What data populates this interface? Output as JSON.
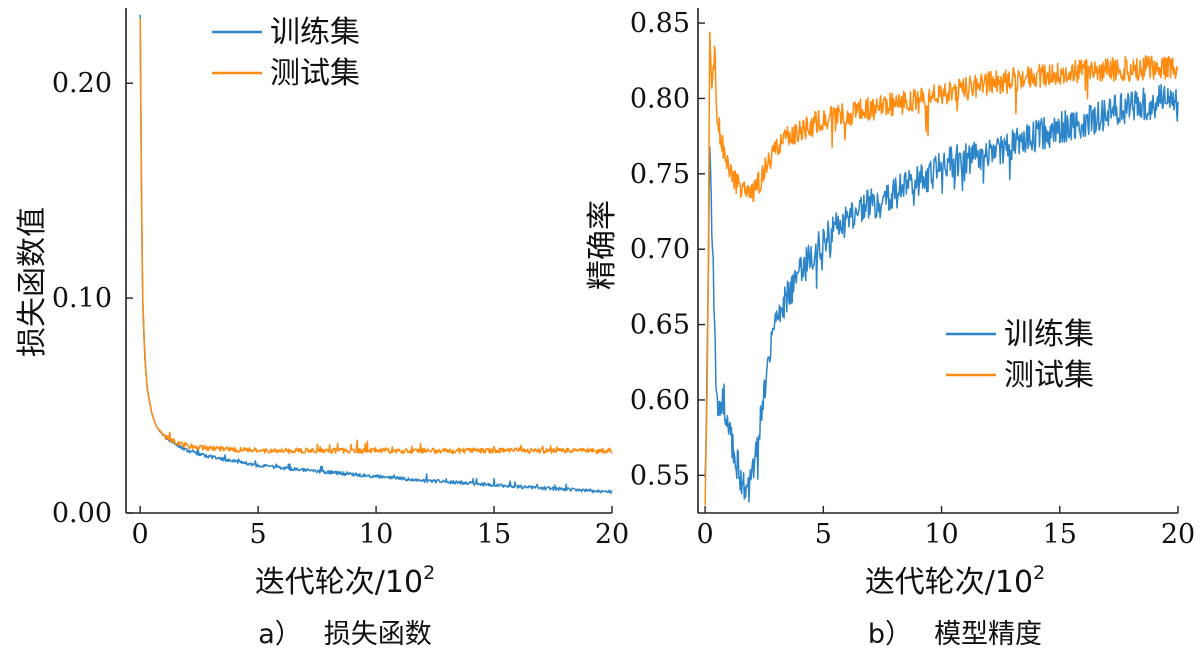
{
  "colors": {
    "train": "#2c85c8",
    "test": "#ff8c10"
  },
  "chart_data": [
    {
      "type": "line",
      "caption_prefix": "a）",
      "caption": "损失函数",
      "xlabel": "迭代轮次/10",
      "xlabel_exp": "2",
      "ylabel": "损失函数值",
      "xlim": [
        -0.6,
        20
      ],
      "ylim": [
        0.0,
        0.235
      ],
      "xticks": [
        0,
        5,
        10,
        15,
        20
      ],
      "xtick_labels": [
        "0",
        "5",
        "10",
        "15",
        "20"
      ],
      "yticks": [
        0.0,
        0.1,
        0.2
      ],
      "ytick_labels": [
        "0.00",
        "0.10",
        "0.20"
      ],
      "legend": {
        "position": "top-center",
        "entries": [
          "训练集",
          "测试集"
        ]
      },
      "series": [
        {
          "name": "训练集",
          "color_key": "train",
          "x": [
            0,
            0.05,
            0.1,
            0.2,
            0.3,
            0.5,
            0.7,
            1,
            1.5,
            2,
            3,
            4,
            5,
            6,
            7,
            8,
            9,
            10,
            11,
            12,
            13,
            14,
            15,
            16,
            17,
            18,
            19,
            20
          ],
          "values": [
            0.232,
            0.16,
            0.1,
            0.072,
            0.058,
            0.046,
            0.04,
            0.036,
            0.032,
            0.029,
            0.026,
            0.024,
            0.022,
            0.021,
            0.02,
            0.019,
            0.018,
            0.017,
            0.016,
            0.015,
            0.0145,
            0.0138,
            0.013,
            0.0123,
            0.0116,
            0.011,
            0.0104,
            0.0098
          ]
        },
        {
          "name": "测试集",
          "color_key": "test",
          "x": [
            0,
            0.05,
            0.1,
            0.2,
            0.3,
            0.5,
            0.7,
            1,
            1.5,
            2,
            3,
            4,
            5,
            6,
            7,
            8,
            9,
            10,
            11,
            12,
            13,
            14,
            15,
            16,
            17,
            18,
            19,
            20
          ],
          "values": [
            0.23,
            0.16,
            0.1,
            0.072,
            0.058,
            0.046,
            0.04,
            0.036,
            0.033,
            0.031,
            0.03,
            0.0295,
            0.029,
            0.029,
            0.029,
            0.029,
            0.029,
            0.029,
            0.029,
            0.029,
            0.029,
            0.029,
            0.029,
            0.029,
            0.029,
            0.029,
            0.029,
            0.029
          ]
        }
      ]
    },
    {
      "type": "line",
      "caption_prefix": "b）",
      "caption": "模型精度",
      "xlabel": "迭代轮次/10",
      "xlabel_exp": "2",
      "ylabel": "精确率",
      "xlim": [
        -0.3,
        20
      ],
      "ylim": [
        0.525,
        0.86
      ],
      "xticks": [
        0,
        5,
        10,
        15,
        20
      ],
      "xtick_labels": [
        "0",
        "5",
        "10",
        "15",
        "20"
      ],
      "yticks": [
        0.55,
        0.6,
        0.65,
        0.7,
        0.75,
        0.8,
        0.85
      ],
      "ytick_labels": [
        "0.55",
        "0.60",
        "0.65",
        "0.70",
        "0.75",
        "0.80",
        "0.85"
      ],
      "legend": {
        "position": "center-right",
        "entries": [
          "训练集",
          "测试集"
        ]
      },
      "series": [
        {
          "name": "训练集",
          "color_key": "train",
          "x": [
            0,
            0.1,
            0.2,
            0.3,
            0.4,
            0.5,
            0.6,
            0.8,
            1,
            1.3,
            1.6,
            1.8,
            2,
            2.3,
            2.6,
            3,
            3.5,
            4,
            5,
            6,
            7,
            8,
            9,
            10,
            12,
            14,
            16,
            18,
            20
          ],
          "values": [
            0.54,
            0.63,
            0.775,
            0.72,
            0.65,
            0.6,
            0.59,
            0.6,
            0.58,
            0.56,
            0.545,
            0.54,
            0.55,
            0.58,
            0.62,
            0.655,
            0.67,
            0.685,
            0.705,
            0.72,
            0.73,
            0.738,
            0.745,
            0.755,
            0.765,
            0.775,
            0.785,
            0.795,
            0.8
          ]
        },
        {
          "name": "测试集",
          "color_key": "test",
          "x": [
            0,
            0.1,
            0.2,
            0.3,
            0.4,
            0.5,
            0.7,
            1,
            1.3,
            1.6,
            1.8,
            2,
            2.3,
            2.6,
            3,
            3.5,
            4,
            5,
            6,
            7,
            8,
            9,
            10,
            12,
            14,
            16,
            18,
            20
          ],
          "values": [
            0.53,
            0.62,
            0.845,
            0.8,
            0.835,
            0.79,
            0.77,
            0.755,
            0.745,
            0.74,
            0.735,
            0.738,
            0.745,
            0.755,
            0.765,
            0.775,
            0.78,
            0.785,
            0.79,
            0.793,
            0.796,
            0.799,
            0.803,
            0.81,
            0.815,
            0.818,
            0.82,
            0.821
          ]
        }
      ]
    }
  ]
}
